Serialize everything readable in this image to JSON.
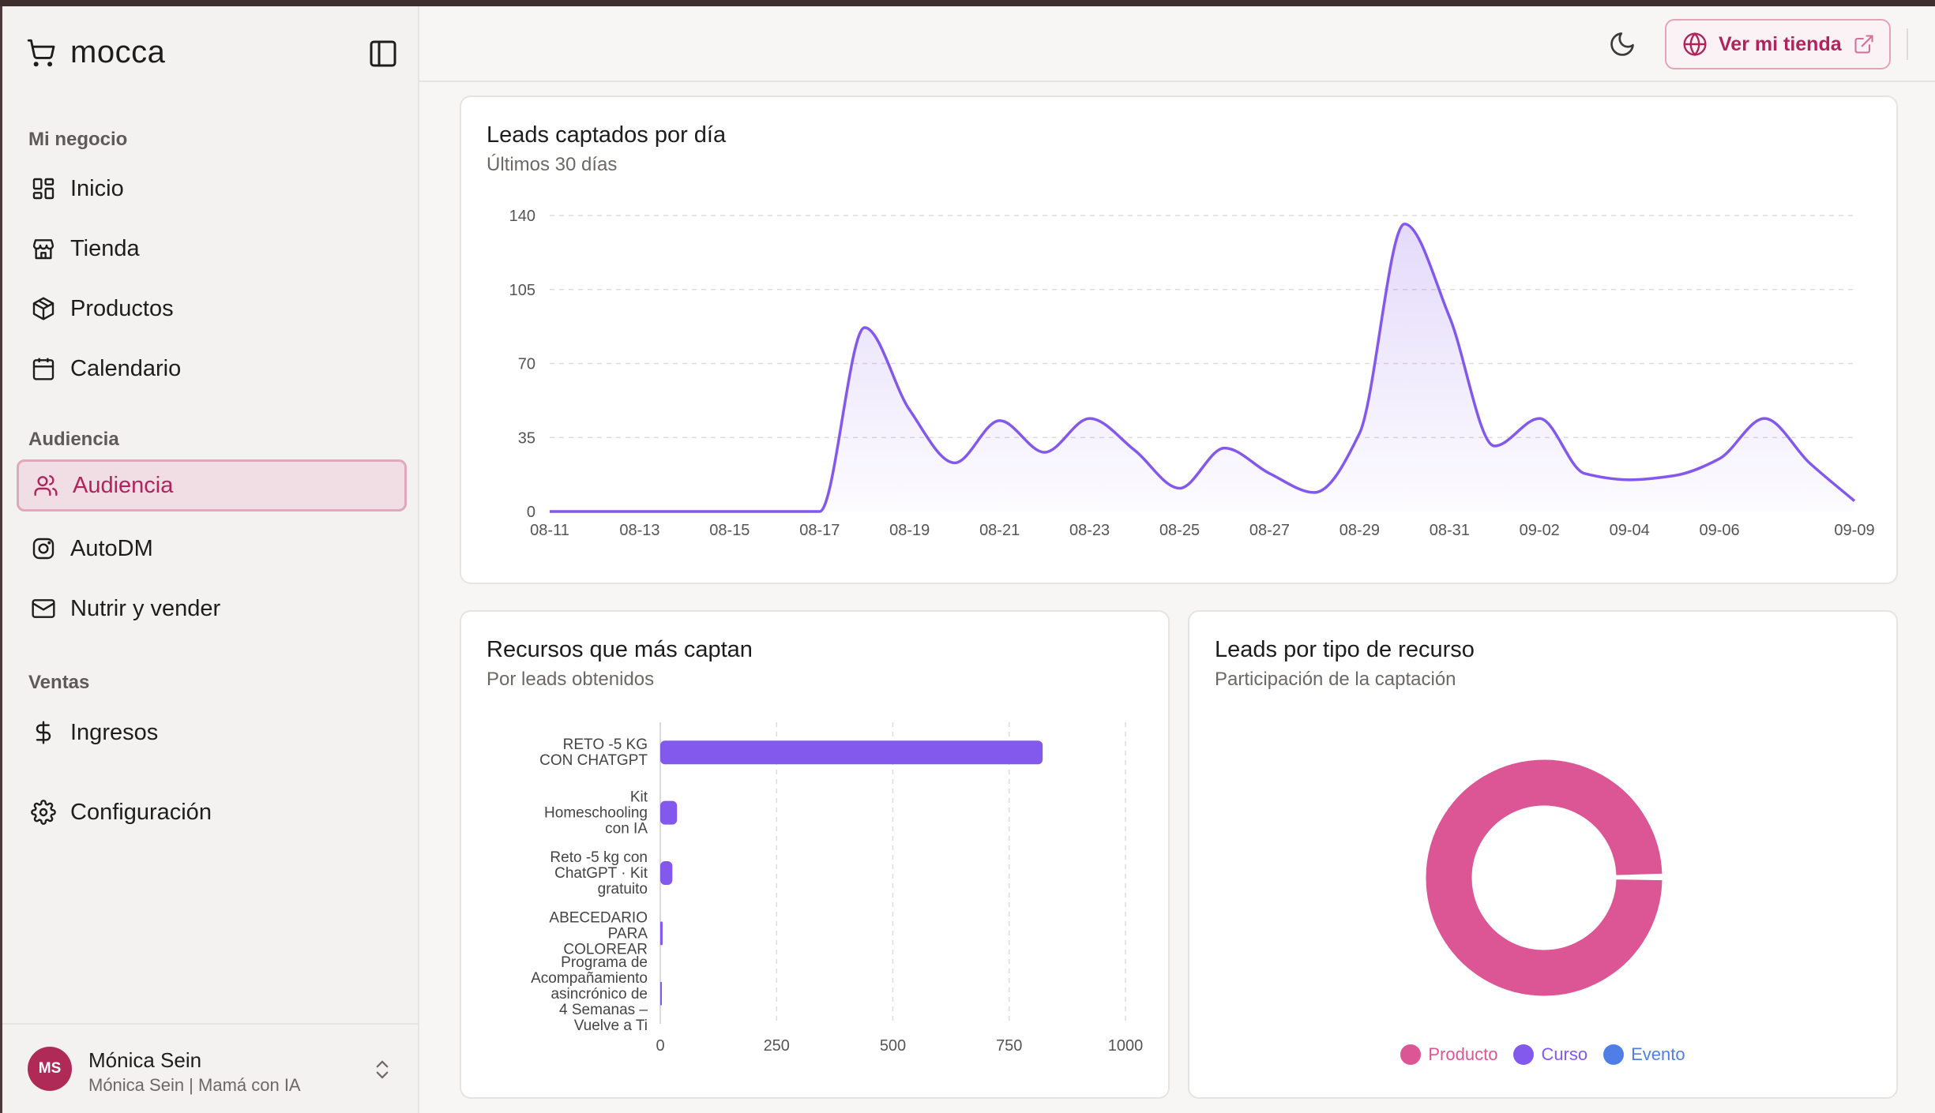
{
  "app": {
    "name": "mocca"
  },
  "sidebar": {
    "sections": {
      "negocio": "Mi negocio",
      "audiencia": "Audiencia",
      "ventas": "Ventas"
    },
    "items": {
      "inicio": "Inicio",
      "tienda": "Tienda",
      "productos": "Productos",
      "calendario": "Calendario",
      "audiencia": "Audiencia",
      "autodm": "AutoDM",
      "nutrir": "Nutrir y vender",
      "ingresos": "Ingresos",
      "configuracion": "Configuración"
    },
    "active": "audiencia",
    "user": {
      "initials": "MS",
      "name": "Mónica Sein",
      "subtitle": "Mónica Sein | Mamá con IA"
    }
  },
  "header": {
    "store_button": "Ver mi tienda"
  },
  "colors": {
    "accent": "#b0245b",
    "purple": "#8358ec",
    "pink": "#dc5594",
    "blue": "#4f7fe6"
  },
  "cards": {
    "leads_day": {
      "title": "Leads captados por día",
      "subtitle": "Últimos 30 días"
    },
    "resources": {
      "title": "Recursos que más captan",
      "subtitle": "Por leads obtenidos"
    },
    "types": {
      "title": "Leads por tipo de recurso",
      "subtitle": "Participación de la captación"
    }
  },
  "chart_data": [
    {
      "type": "area",
      "title": "Leads captados por día",
      "subtitle": "Últimos 30 días",
      "ylim": [
        0,
        140
      ],
      "yticks": [
        0,
        35,
        70,
        105,
        140
      ],
      "xtick_labels": [
        "08-11",
        "08-13",
        "08-15",
        "08-17",
        "08-19",
        "08-21",
        "08-23",
        "08-25",
        "08-27",
        "08-29",
        "08-31",
        "09-02",
        "09-04",
        "09-06",
        "09-09"
      ],
      "x": [
        "08-11",
        "08-12",
        "08-13",
        "08-14",
        "08-15",
        "08-16",
        "08-17",
        "08-18",
        "08-19",
        "08-20",
        "08-21",
        "08-22",
        "08-23",
        "08-24",
        "08-25",
        "08-26",
        "08-27",
        "08-28",
        "08-29",
        "08-30",
        "08-31",
        "09-01",
        "09-02",
        "09-03",
        "09-04",
        "09-05",
        "09-06",
        "09-07",
        "09-08",
        "09-09"
      ],
      "values": [
        0,
        0,
        0,
        0,
        0,
        0,
        0,
        87,
        48,
        23,
        43,
        28,
        44,
        29,
        11,
        30,
        18,
        9,
        37,
        136,
        92,
        31,
        44,
        18,
        15,
        17,
        25,
        44,
        23,
        5
      ],
      "grid": true
    },
    {
      "type": "bar",
      "orientation": "horizontal",
      "title": "Recursos que más captan",
      "subtitle": "Por leads obtenidos",
      "categories": [
        [
          "RETO -5 KG",
          "CON CHATGPT"
        ],
        [
          "Kit",
          "Homeschooling",
          "con IA"
        ],
        [
          "Reto -5 kg con",
          "ChatGPT · Kit",
          "gratuito"
        ],
        [
          "ABECEDARIO",
          "PARA",
          "COLOREAR"
        ],
        [
          "Programa de",
          "Acompañamiento",
          "asincrónico de",
          "4 Semanas –",
          "Vuelve a Ti"
        ]
      ],
      "values": [
        822,
        36,
        26,
        5,
        3
      ],
      "xlim": [
        0,
        1000
      ],
      "xticks": [
        0,
        250,
        500,
        750,
        1000
      ]
    },
    {
      "type": "pie",
      "style": "donut",
      "title": "Leads por tipo de recurso",
      "subtitle": "Participación de la captación",
      "labels": [
        "Producto",
        "Curso",
        "Evento"
      ],
      "values": [
        99.5,
        0.3,
        0.2
      ],
      "colors": [
        "#dc5594",
        "#8358ec",
        "#4f7fe6"
      ],
      "legend": "bottom"
    }
  ]
}
